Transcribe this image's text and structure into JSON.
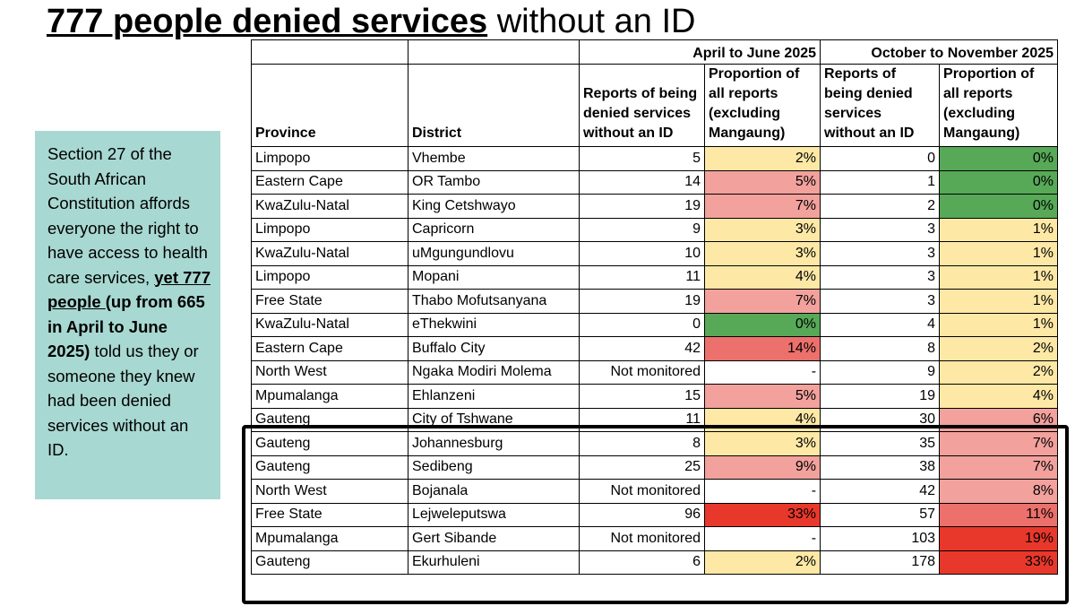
{
  "title": {
    "bold": "777 people denied services",
    "rest": " without an ID"
  },
  "sidebar": {
    "text1": "Section 27 of the South African Constitution affords everyone the right to have access to health care services, ",
    "bold_underline": "yet 777 people ",
    "bold": "(up from 665 in April to June 2025)",
    "text2": " told us they or someone they knew had been denied services without an ID."
  },
  "table": {
    "periods": [
      "April to June 2025",
      "October to November 2025"
    ],
    "headers": {
      "province": "Province",
      "district": "District",
      "reports": "Reports of being denied services without an ID",
      "proportion": "Proportion of all reports (excluding Mangaung)"
    },
    "colors": {
      "green": "#57a957",
      "yellow": "#fde8a6",
      "pink": "#f2a19c",
      "salmon": "#ec706b",
      "red": "#e8382b"
    },
    "rows": [
      {
        "province": "Limpopo",
        "district": "Vhembe",
        "r1": "5",
        "p1": "2%",
        "r2": "0",
        "p2": "0%"
      },
      {
        "province": "Eastern Cape",
        "district": "OR Tambo",
        "r1": "14",
        "p1": "5%",
        "r2": "1",
        "p2": "0%"
      },
      {
        "province": "KwaZulu-Natal",
        "district": "King Cetshwayo",
        "r1": "19",
        "p1": "7%",
        "r2": "2",
        "p2": "0%"
      },
      {
        "province": "Limpopo",
        "district": "Capricorn",
        "r1": "9",
        "p1": "3%",
        "r2": "3",
        "p2": "1%"
      },
      {
        "province": "KwaZulu-Natal",
        "district": "uMgungundlovu",
        "r1": "10",
        "p1": "3%",
        "r2": "3",
        "p2": "1%"
      },
      {
        "province": "Limpopo",
        "district": "Mopani",
        "r1": "11",
        "p1": "4%",
        "r2": "3",
        "p2": "1%"
      },
      {
        "province": "Free State",
        "district": "Thabo Mofutsanyana",
        "r1": "19",
        "p1": "7%",
        "r2": "3",
        "p2": "1%"
      },
      {
        "province": "KwaZulu-Natal",
        "district": "eThekwini",
        "r1": "0",
        "p1": "0%",
        "r2": "4",
        "p2": "1%"
      },
      {
        "province": "Eastern Cape",
        "district": "Buffalo City",
        "r1": "42",
        "p1": "14%",
        "r2": "8",
        "p2": "2%"
      },
      {
        "province": "North West",
        "district": "Ngaka Modiri Molema",
        "r1": "Not monitored",
        "p1": "-",
        "r2": "9",
        "p2": "2%"
      },
      {
        "province": "Mpumalanga",
        "district": "Ehlanzeni",
        "r1": "15",
        "p1": "5%",
        "r2": "19",
        "p2": "4%"
      },
      {
        "province": "Gauteng",
        "district": "City of Tshwane",
        "r1": "11",
        "p1": "4%",
        "r2": "30",
        "p2": "6%"
      },
      {
        "province": "Gauteng",
        "district": "Johannesburg",
        "r1": "8",
        "p1": "3%",
        "r2": "35",
        "p2": "7%"
      },
      {
        "province": "Gauteng",
        "district": "Sedibeng",
        "r1": "25",
        "p1": "9%",
        "r2": "38",
        "p2": "7%"
      },
      {
        "province": "North West",
        "district": "Bojanala",
        "r1": "Not monitored",
        "p1": "-",
        "r2": "42",
        "p2": "8%"
      },
      {
        "province": "Free State",
        "district": "Lejweleputswa",
        "r1": "96",
        "p1": "33%",
        "r2": "57",
        "p2": "11%"
      },
      {
        "province": "Mpumalanga",
        "district": "Gert Sibande",
        "r1": "Not monitored",
        "p1": "-",
        "r2": "103",
        "p2": "19%"
      },
      {
        "province": "Gauteng",
        "district": "Ekurhuleni",
        "r1": "6",
        "p1": "2%",
        "r2": "178",
        "p2": "33%"
      }
    ]
  }
}
